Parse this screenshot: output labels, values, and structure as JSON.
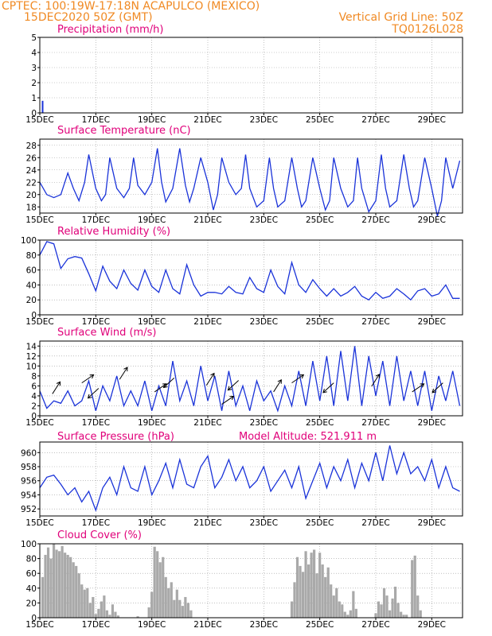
{
  "header": {
    "line1_left": "CPTEC:   100:19W-17:18N   ACAPULCO (MEXICO)",
    "line2_left": "15DEC2020 50Z (GMT)",
    "line1_right": "Vertical Grid Line: 50Z",
    "line2_right": "TQ0126L028",
    "model_altitude": "Model Altitude: 521.911  m"
  },
  "colors": {
    "header": "#f08a24",
    "title": "#e0007a",
    "series": "#1a33d9",
    "cloud": "#a9a9a9"
  },
  "chart_data": [
    {
      "id": "precip",
      "type": "bar",
      "title": "Precipitation (mm/h)",
      "x_unit": "day offset from 15DEC",
      "ylim": [
        0,
        5
      ],
      "yticks": [
        0,
        1,
        2,
        3,
        4,
        5
      ],
      "x": [
        0.1
      ],
      "values": [
        0.8
      ]
    },
    {
      "id": "temp",
      "type": "line",
      "title": "Surface Temperature (nC)",
      "x_unit": "day offset from 15DEC",
      "ylim": [
        17,
        29
      ],
      "yticks": [
        18,
        20,
        22,
        24,
        26,
        28
      ],
      "x": [
        0,
        0.25,
        0.5,
        0.75,
        1,
        1.2,
        1.4,
        1.6,
        1.75,
        2,
        2.2,
        2.35,
        2.5,
        2.75,
        3,
        3.2,
        3.35,
        3.5,
        3.75,
        4,
        4.2,
        4.35,
        4.5,
        4.75,
        5,
        5.2,
        5.35,
        5.5,
        5.75,
        6,
        6.2,
        6.35,
        6.5,
        6.75,
        7,
        7.2,
        7.35,
        7.5,
        7.75,
        8,
        8.2,
        8.35,
        8.5,
        8.75,
        9,
        9.2,
        9.35,
        9.5,
        9.75,
        10,
        10.2,
        10.35,
        10.5,
        10.75,
        11,
        11.2,
        11.35,
        11.5,
        11.75,
        12,
        12.2,
        12.35,
        12.5,
        12.75,
        13,
        13.2,
        13.35,
        13.5,
        13.75,
        14,
        14.2,
        14.35,
        14.5,
        14.75,
        15
      ],
      "values": [
        22,
        20,
        19.5,
        20,
        23.5,
        21,
        19,
        22,
        26.5,
        21,
        19,
        20,
        26,
        21,
        19.5,
        21,
        26,
        21.5,
        20,
        22,
        27.5,
        22,
        18.8,
        21,
        27.5,
        21.5,
        18.8,
        21,
        26,
        22,
        17.5,
        20,
        26,
        22,
        20,
        21,
        26.5,
        21,
        18,
        19,
        26,
        21,
        18,
        19,
        26,
        21,
        18,
        19,
        26,
        21,
        17.5,
        19,
        26,
        21,
        18,
        19,
        26,
        21,
        17.2,
        19,
        26.5,
        21,
        18,
        19,
        26.5,
        21,
        18,
        19,
        26,
        21,
        16.5,
        19,
        26,
        21,
        25.5
      ]
    },
    {
      "id": "rh",
      "type": "line",
      "title": "Relative Humidity (%)",
      "x_unit": "day offset from 15DEC",
      "ylim": [
        0,
        100
      ],
      "yticks": [
        0,
        20,
        40,
        60,
        80,
        100
      ],
      "x": [
        0,
        0.25,
        0.5,
        0.75,
        1,
        1.25,
        1.5,
        1.75,
        2,
        2.25,
        2.5,
        2.75,
        3,
        3.25,
        3.5,
        3.75,
        4,
        4.25,
        4.5,
        4.75,
        5,
        5.25,
        5.5,
        5.75,
        6,
        6.25,
        6.5,
        6.75,
        7,
        7.25,
        7.5,
        7.75,
        8,
        8.25,
        8.5,
        8.75,
        9,
        9.25,
        9.5,
        9.75,
        10,
        10.25,
        10.5,
        10.75,
        11,
        11.25,
        11.5,
        11.75,
        12,
        12.25,
        12.5,
        12.75,
        13,
        13.25,
        13.5,
        13.75,
        14,
        14.25,
        14.5,
        14.75,
        15
      ],
      "values": [
        80,
        98,
        95,
        62,
        75,
        78,
        76,
        55,
        32,
        65,
        45,
        35,
        60,
        42,
        33,
        60,
        38,
        30,
        60,
        35,
        28,
        67,
        40,
        25,
        30,
        30,
        28,
        38,
        30,
        28,
        50,
        35,
        30,
        60,
        38,
        28,
        70,
        40,
        30,
        47,
        35,
        25,
        35,
        25,
        30,
        38,
        25,
        20,
        30,
        22,
        25,
        35,
        28,
        20,
        32,
        35,
        25,
        28,
        40,
        22,
        22
      ]
    },
    {
      "id": "wind",
      "type": "line",
      "title": "Surface Wind (m/s)",
      "x_unit": "day offset from 15DEC",
      "ylim": [
        0,
        15
      ],
      "yticks": [
        0,
        2,
        4,
        6,
        8,
        10,
        12,
        14
      ],
      "x": [
        0,
        0.25,
        0.5,
        0.75,
        1,
        1.25,
        1.5,
        1.75,
        2,
        2.25,
        2.5,
        2.75,
        3,
        3.25,
        3.5,
        3.75,
        4,
        4.25,
        4.5,
        4.75,
        5,
        5.25,
        5.5,
        5.75,
        6,
        6.25,
        6.5,
        6.75,
        7,
        7.25,
        7.5,
        7.75,
        8,
        8.25,
        8.5,
        8.75,
        9,
        9.25,
        9.5,
        9.75,
        10,
        10.25,
        10.5,
        10.75,
        11,
        11.25,
        11.5,
        11.75,
        12,
        12.25,
        12.5,
        12.75,
        13,
        13.25,
        13.5,
        13.75,
        14,
        14.25,
        14.5,
        14.75,
        15
      ],
      "values": [
        5,
        1.5,
        3,
        2.5,
        5,
        2,
        3,
        7,
        1,
        6,
        3,
        8,
        2,
        5,
        2,
        7,
        1,
        6,
        2,
        11,
        3,
        7,
        2,
        10,
        3,
        8,
        1,
        9,
        2,
        6,
        1,
        7,
        3,
        5,
        1,
        6,
        2,
        9,
        2,
        11,
        3,
        12,
        2,
        13,
        3,
        14,
        2,
        12,
        4,
        11,
        2,
        12,
        3,
        9,
        2,
        9,
        1,
        8,
        3,
        9,
        2
      ],
      "vectors": [
        [
          0.45,
          4.4
        ],
        [
          1.5,
          6.6
        ],
        [
          2.1,
          5.5
        ],
        [
          2.85,
          7.3
        ],
        [
          4.1,
          4.8
        ],
        [
          4.8,
          7.6
        ],
        [
          5.95,
          6.1
        ],
        [
          6.5,
          2.3
        ],
        [
          7.1,
          7.1
        ],
        [
          8.35,
          4.8
        ],
        [
          9.0,
          6.6
        ],
        [
          10.5,
          6.6
        ],
        [
          11.85,
          5.9
        ],
        [
          13.3,
          4.8
        ],
        [
          14.4,
          6.6
        ]
      ]
    },
    {
      "id": "pres",
      "type": "line",
      "title": "Surface Pressure (hPa)",
      "x_unit": "day offset from 15DEC",
      "ylim": [
        951,
        961.5
      ],
      "yticks": [
        952,
        954,
        956,
        958,
        960
      ],
      "x": [
        0,
        0.25,
        0.5,
        0.75,
        1,
        1.25,
        1.5,
        1.75,
        2,
        2.25,
        2.5,
        2.75,
        3,
        3.25,
        3.5,
        3.75,
        4,
        4.25,
        4.5,
        4.75,
        5,
        5.25,
        5.5,
        5.75,
        6,
        6.25,
        6.5,
        6.75,
        7,
        7.25,
        7.5,
        7.75,
        8,
        8.25,
        8.5,
        8.75,
        9,
        9.25,
        9.5,
        9.75,
        10,
        10.25,
        10.5,
        10.75,
        11,
        11.25,
        11.5,
        11.75,
        12,
        12.25,
        12.5,
        12.75,
        13,
        13.25,
        13.5,
        13.75,
        14,
        14.25,
        14.5,
        14.75,
        15
      ],
      "values": [
        955,
        956.5,
        956.8,
        955.5,
        954,
        955,
        953,
        954.5,
        951.8,
        955,
        956.5,
        954,
        958,
        955,
        954.5,
        958,
        954,
        956,
        958.5,
        955,
        959,
        955.5,
        955,
        958,
        959.5,
        955,
        956.5,
        959,
        956,
        958,
        955,
        956,
        958,
        954.5,
        956,
        957.5,
        955,
        958,
        953.5,
        956,
        958.5,
        955,
        958,
        956,
        959,
        955,
        958.5,
        956,
        960,
        956,
        961,
        957,
        960,
        957,
        958,
        956,
        959,
        955,
        958,
        955,
        954.5
      ]
    },
    {
      "id": "cloud",
      "type": "bar",
      "title": "Cloud Cover (%)",
      "x_unit": "day offset from 15DEC",
      "ylim": [
        0,
        100
      ],
      "yticks": [
        0,
        20,
        40,
        60,
        80,
        100
      ],
      "x": [
        0.1,
        0.2,
        0.3,
        0.4,
        0.5,
        0.6,
        0.7,
        0.8,
        0.9,
        1.0,
        1.1,
        1.2,
        1.3,
        1.4,
        1.5,
        1.6,
        1.7,
        1.8,
        1.9,
        2.0,
        2.1,
        2.2,
        2.3,
        2.4,
        2.5,
        2.6,
        2.7,
        2.8,
        3.5,
        3.9,
        4.0,
        4.1,
        4.2,
        4.3,
        4.4,
        4.5,
        4.6,
        4.7,
        4.8,
        4.9,
        5.0,
        5.1,
        5.2,
        5.3,
        5.4,
        9.0,
        9.1,
        9.2,
        9.3,
        9.4,
        9.5,
        9.6,
        9.7,
        9.8,
        9.9,
        10.0,
        10.1,
        10.2,
        10.3,
        10.4,
        10.5,
        10.6,
        10.7,
        10.8,
        10.9,
        11.0,
        11.1,
        11.2,
        11.3,
        12.0,
        12.1,
        12.2,
        12.3,
        12.4,
        12.5,
        12.6,
        12.7,
        12.8,
        12.9,
        13.0,
        13.1,
        13.3,
        13.4,
        13.5,
        13.6
      ],
      "values": [
        55,
        85,
        95,
        80,
        100,
        92,
        90,
        97,
        88,
        85,
        82,
        75,
        70,
        60,
        45,
        38,
        40,
        20,
        28,
        5,
        12,
        22,
        30,
        10,
        4,
        18,
        8,
        3,
        2,
        14,
        35,
        96,
        90,
        75,
        82,
        55,
        40,
        48,
        24,
        38,
        24,
        16,
        28,
        20,
        10,
        22,
        48,
        82,
        70,
        62,
        90,
        72,
        88,
        92,
        60,
        88,
        72,
        55,
        68,
        45,
        30,
        40,
        22,
        18,
        8,
        4,
        10,
        36,
        12,
        6,
        22,
        18,
        40,
        30,
        10,
        26,
        42,
        20,
        8,
        4,
        4,
        78,
        84,
        30,
        10
      ]
    }
  ],
  "x_axis": {
    "tick_labels": [
      "15DEC",
      "17DEC",
      "19DEC",
      "21DEC",
      "23DEC",
      "25DEC",
      "27DEC",
      "29DEC"
    ],
    "tick_days": [
      0,
      2,
      4,
      6,
      8,
      10,
      12,
      14
    ],
    "xlim": [
      0,
      15.1
    ]
  }
}
